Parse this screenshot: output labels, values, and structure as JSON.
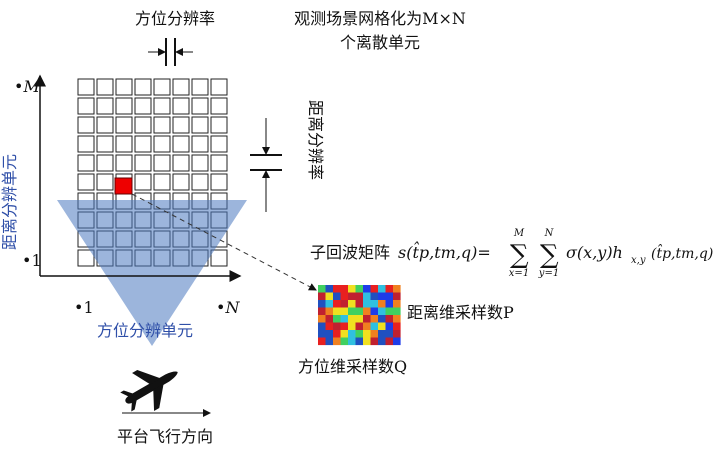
{
  "labels": {
    "azimuth_resolution": "方位分辨率",
    "grid_note_1": "观测场景网格化为M×N",
    "grid_note_2": "个离散单元",
    "axis_m": "•M",
    "axis_n": "•N",
    "axis_y1": "•1",
    "axis_x1": "•1",
    "range_cell": "距离分辨单元",
    "range_resolution": "距离分辨率",
    "azimuth_cell": "方位分辨单元",
    "sub_echo": "子回波矩阵",
    "range_samples": "距离维采样数P",
    "azimuth_samples": "方位维采样数Q",
    "flight_direction": "平台飞行方向"
  },
  "formula": {
    "lhs": "s(t̂p,tm,q)=",
    "sum1_top": "M",
    "sum1_bottom": "x=1",
    "sum2_top": "N",
    "sum2_bottom": "y=1",
    "rhs": "σ(x,y)h",
    "rhs_sub": "x,y",
    "rhs_args": "(t̂p,tm,q)"
  }
}
